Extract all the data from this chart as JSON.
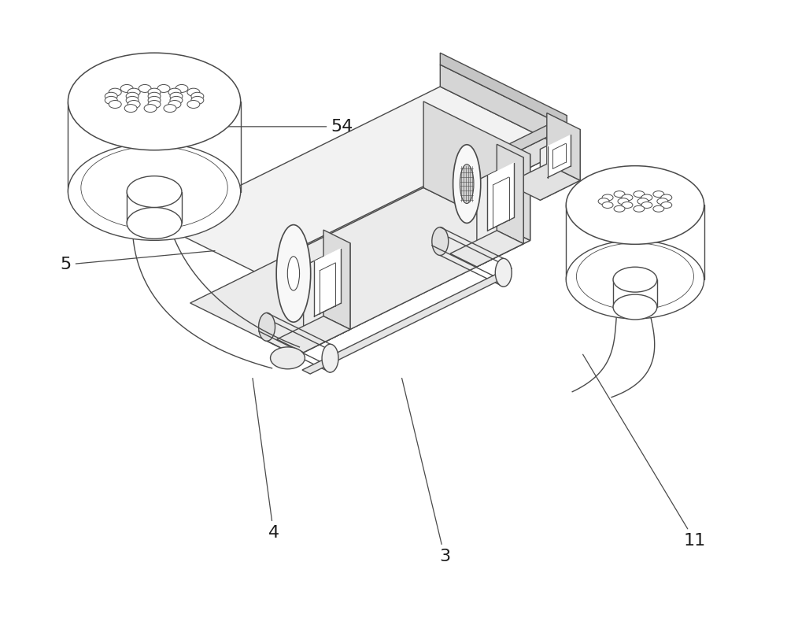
{
  "bg_color": "#ffffff",
  "line_color": "#4a4a4a",
  "line_width": 1.0,
  "fig_width": 10.0,
  "fig_height": 8.08,
  "label_fontsize": 16
}
